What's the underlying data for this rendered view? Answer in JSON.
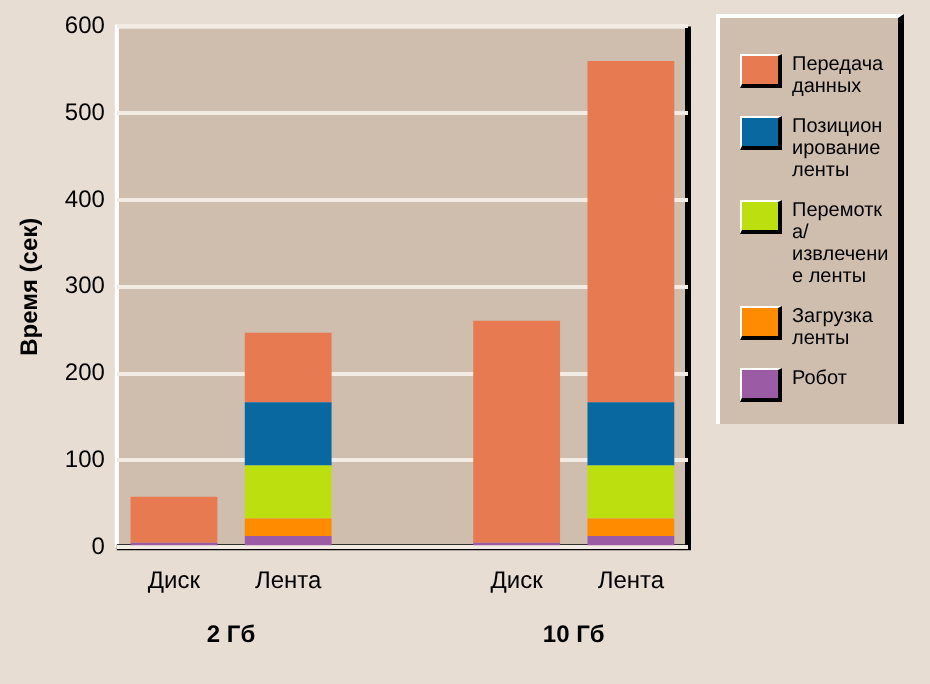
{
  "chart_data": {
    "type": "bar",
    "stacked": true,
    "ylabel": "Время (сек)",
    "categories": [
      "Диск",
      "Лента",
      null,
      "Диск",
      "Лента"
    ],
    "series": [
      {
        "name": "Робот",
        "color": "#9b5ba5",
        "values": [
          5,
          13,
          null,
          5,
          13
        ]
      },
      {
        "name": "Загрузка ленты",
        "color": "#ff8c00",
        "values": [
          0,
          20,
          null,
          0,
          20
        ]
      },
      {
        "name": "Перемотка/извлечение ленты",
        "color": "#bcdf10",
        "values": [
          0,
          61,
          null,
          0,
          61
        ]
      },
      {
        "name": "Позиционирование ленты",
        "color": "#0a68a0",
        "values": [
          0,
          73,
          null,
          0,
          73
        ]
      },
      {
        "name": "Передача данных",
        "color": "#e87a52",
        "values": [
          53,
          80,
          null,
          256,
          393
        ]
      }
    ],
    "ylim": [
      0,
      600
    ],
    "yticks": [
      0,
      100,
      200,
      300,
      400,
      500,
      600
    ],
    "grid": "y",
    "legend": "right",
    "annotations": [
      "2 Гб",
      "10 Гб"
    ]
  }
}
